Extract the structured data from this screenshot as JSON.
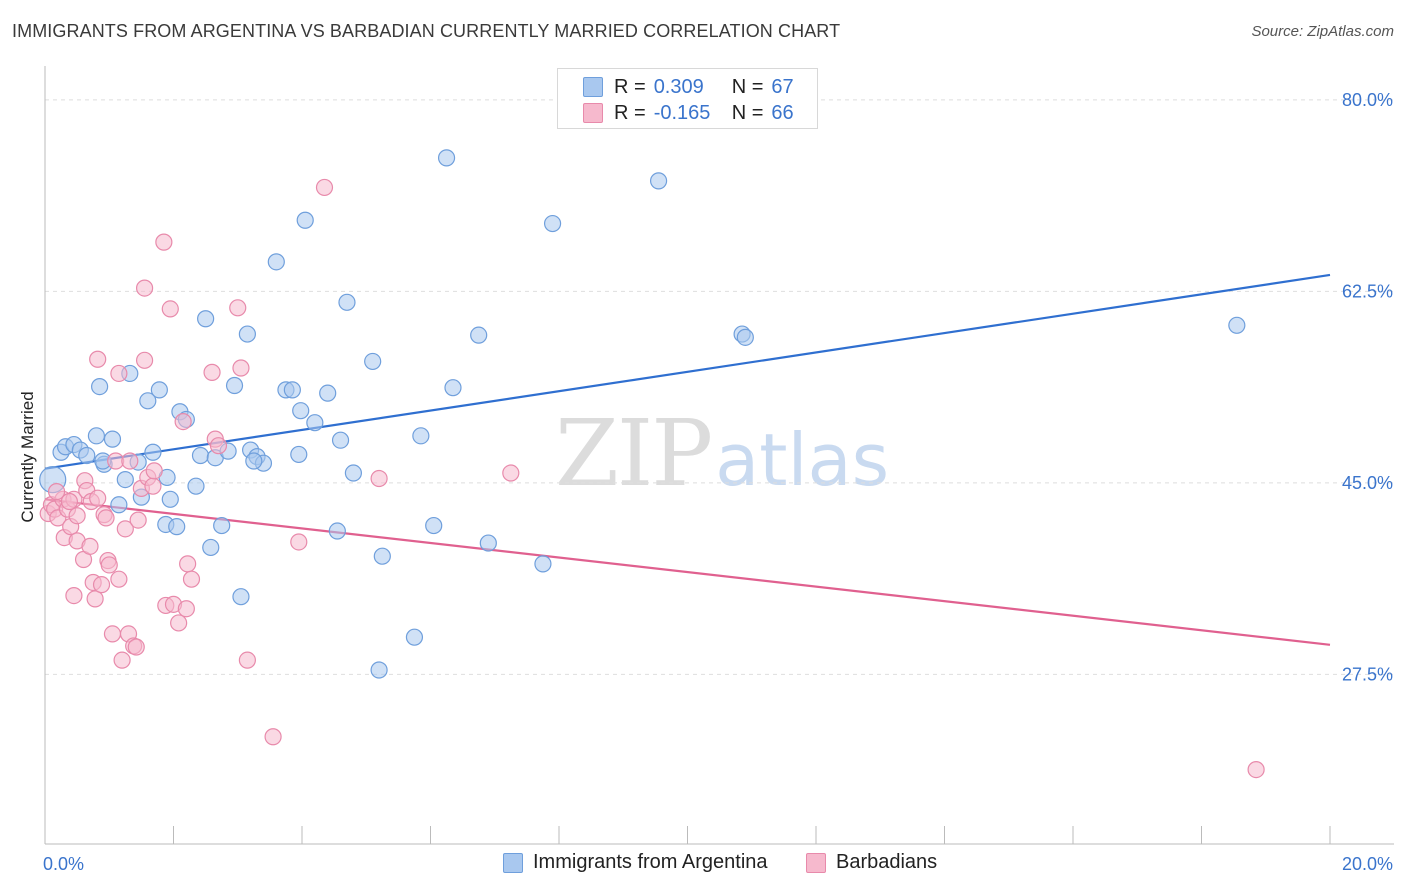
{
  "header": {
    "title": "IMMIGRANTS FROM ARGENTINA VS BARBADIAN CURRENTLY MARRIED CORRELATION CHART",
    "source": "Source: ZipAtlas.com"
  },
  "watermark": {
    "zip": "ZIP",
    "atlas": "atlas"
  },
  "legend": {
    "r_label": "R =",
    "n_label": "N =",
    "rows": [
      {
        "r_value": "0.309",
        "n_value": "67"
      },
      {
        "r_value": "-0.165",
        "n_value": "66"
      }
    ]
  },
  "chart_data": {
    "type": "scatter",
    "title": "IMMIGRANTS FROM ARGENTINA VS BARBADIAN CURRENTLY MARRIED CORRELATION CHART",
    "ylabel": "Currently Married",
    "xlabel": "",
    "xlim": [
      0,
      20
    ],
    "ylim": [
      12,
      82
    ],
    "x_tick_labels": [
      "0.0%",
      "20.0%"
    ],
    "y_ticks": [
      27.5,
      45.0,
      62.5,
      80.0
    ],
    "y_tick_labels": [
      "27.5%",
      "45.0%",
      "62.5%",
      "80.0%"
    ],
    "grid": true,
    "legend_position": "top-center",
    "colors": {
      "argentina_fill": "#a9c8ef",
      "argentina_stroke": "#6f9fdc",
      "argentina_line": "#2f6fd0",
      "barbadian_fill": "#f6b9cd",
      "barbadian_stroke": "#e88aab",
      "barbadian_line": "#e0608f",
      "tick_label": "#3a74cc"
    },
    "series": [
      {
        "name": "Immigrants from Argentina",
        "r": 0.309,
        "n": 67,
        "trend": {
          "x": [
            0.0,
            20.0
          ],
          "y": [
            46.3,
            64.0
          ]
        },
        "points": [
          {
            "x": 0.12,
            "y": 45.3,
            "big": true
          },
          {
            "x": 0.25,
            "y": 47.8
          },
          {
            "x": 0.32,
            "y": 48.3
          },
          {
            "x": 0.45,
            "y": 48.5
          },
          {
            "x": 0.55,
            "y": 48.0
          },
          {
            "x": 0.65,
            "y": 47.5
          },
          {
            "x": 0.8,
            "y": 49.3
          },
          {
            "x": 0.85,
            "y": 53.8
          },
          {
            "x": 0.92,
            "y": 46.7
          },
          {
            "x": 1.05,
            "y": 49.0
          },
          {
            "x": 1.15,
            "y": 43.0
          },
          {
            "x": 1.25,
            "y": 45.3
          },
          {
            "x": 1.32,
            "y": 55.0
          },
          {
            "x": 1.45,
            "y": 46.9
          },
          {
            "x": 1.5,
            "y": 43.7
          },
          {
            "x": 1.6,
            "y": 52.5
          },
          {
            "x": 1.68,
            "y": 47.8
          },
          {
            "x": 1.78,
            "y": 53.5
          },
          {
            "x": 1.88,
            "y": 41.2
          },
          {
            "x": 1.95,
            "y": 43.5
          },
          {
            "x": 2.05,
            "y": 41.0
          },
          {
            "x": 2.1,
            "y": 51.5
          },
          {
            "x": 2.2,
            "y": 50.8
          },
          {
            "x": 2.35,
            "y": 44.7
          },
          {
            "x": 2.42,
            "y": 47.5
          },
          {
            "x": 2.5,
            "y": 60.0
          },
          {
            "x": 2.58,
            "y": 39.1
          },
          {
            "x": 2.65,
            "y": 47.3
          },
          {
            "x": 2.75,
            "y": 41.1
          },
          {
            "x": 2.85,
            "y": 47.9
          },
          {
            "x": 2.95,
            "y": 53.9
          },
          {
            "x": 3.05,
            "y": 34.6
          },
          {
            "x": 3.15,
            "y": 58.6
          },
          {
            "x": 3.2,
            "y": 48.0
          },
          {
            "x": 3.3,
            "y": 47.4
          },
          {
            "x": 3.4,
            "y": 46.8
          },
          {
            "x": 3.6,
            "y": 65.2
          },
          {
            "x": 3.75,
            "y": 53.5
          },
          {
            "x": 3.85,
            "y": 53.5
          },
          {
            "x": 3.95,
            "y": 47.6
          },
          {
            "x": 3.98,
            "y": 51.6
          },
          {
            "x": 4.05,
            "y": 69.0
          },
          {
            "x": 4.2,
            "y": 50.5
          },
          {
            "x": 4.4,
            "y": 53.2
          },
          {
            "x": 4.55,
            "y": 40.6
          },
          {
            "x": 4.6,
            "y": 48.9
          },
          {
            "x": 4.7,
            "y": 61.5
          },
          {
            "x": 4.8,
            "y": 45.9
          },
          {
            "x": 5.1,
            "y": 56.1
          },
          {
            "x": 5.2,
            "y": 27.9
          },
          {
            "x": 5.25,
            "y": 38.3
          },
          {
            "x": 5.75,
            "y": 30.9
          },
          {
            "x": 5.85,
            "y": 49.3
          },
          {
            "x": 6.05,
            "y": 41.1
          },
          {
            "x": 6.25,
            "y": 74.7
          },
          {
            "x": 6.35,
            "y": 53.7
          },
          {
            "x": 6.75,
            "y": 58.5
          },
          {
            "x": 6.9,
            "y": 39.5
          },
          {
            "x": 7.75,
            "y": 37.6
          },
          {
            "x": 7.9,
            "y": 68.7
          },
          {
            "x": 9.55,
            "y": 72.6
          },
          {
            "x": 10.85,
            "y": 58.6
          },
          {
            "x": 10.9,
            "y": 58.3
          },
          {
            "x": 18.55,
            "y": 59.4
          },
          {
            "x": 0.9,
            "y": 47.0
          },
          {
            "x": 1.9,
            "y": 45.5
          },
          {
            "x": 3.25,
            "y": 47.0
          }
        ]
      },
      {
        "name": "Barbadians",
        "r": -0.165,
        "n": 66,
        "trend": {
          "x": [
            0.0,
            20.0
          ],
          "y": [
            43.5,
            30.2
          ]
        },
        "points": [
          {
            "x": 0.05,
            "y": 42.2
          },
          {
            "x": 0.1,
            "y": 43.0
          },
          {
            "x": 0.15,
            "y": 42.6
          },
          {
            "x": 0.2,
            "y": 41.8
          },
          {
            "x": 0.28,
            "y": 43.5
          },
          {
            "x": 0.3,
            "y": 40.0
          },
          {
            "x": 0.35,
            "y": 42.6
          },
          {
            "x": 0.4,
            "y": 41.0
          },
          {
            "x": 0.45,
            "y": 43.5
          },
          {
            "x": 0.45,
            "y": 34.7
          },
          {
            "x": 0.5,
            "y": 42.0
          },
          {
            "x": 0.5,
            "y": 39.7
          },
          {
            "x": 0.6,
            "y": 38.0
          },
          {
            "x": 0.62,
            "y": 45.2
          },
          {
            "x": 0.65,
            "y": 44.3
          },
          {
            "x": 0.7,
            "y": 39.2
          },
          {
            "x": 0.72,
            "y": 43.3
          },
          {
            "x": 0.75,
            "y": 35.9
          },
          {
            "x": 0.78,
            "y": 34.4
          },
          {
            "x": 0.82,
            "y": 43.6
          },
          {
            "x": 0.82,
            "y": 56.3
          },
          {
            "x": 0.88,
            "y": 35.7
          },
          {
            "x": 0.92,
            "y": 42.1
          },
          {
            "x": 0.95,
            "y": 41.8
          },
          {
            "x": 0.98,
            "y": 37.9
          },
          {
            "x": 1.0,
            "y": 37.5
          },
          {
            "x": 1.05,
            "y": 31.2
          },
          {
            "x": 1.1,
            "y": 47.0
          },
          {
            "x": 1.15,
            "y": 55.0
          },
          {
            "x": 1.15,
            "y": 36.2
          },
          {
            "x": 1.2,
            "y": 28.8
          },
          {
            "x": 1.25,
            "y": 40.8
          },
          {
            "x": 1.3,
            "y": 31.2
          },
          {
            "x": 1.32,
            "y": 47.0
          },
          {
            "x": 1.38,
            "y": 30.1
          },
          {
            "x": 1.42,
            "y": 30.0
          },
          {
            "x": 1.45,
            "y": 41.6
          },
          {
            "x": 1.5,
            "y": 44.5
          },
          {
            "x": 1.55,
            "y": 56.2
          },
          {
            "x": 1.55,
            "y": 62.8
          },
          {
            "x": 1.6,
            "y": 45.5
          },
          {
            "x": 1.68,
            "y": 44.7
          },
          {
            "x": 1.7,
            "y": 46.1
          },
          {
            "x": 1.85,
            "y": 67.0
          },
          {
            "x": 1.88,
            "y": 33.8
          },
          {
            "x": 1.95,
            "y": 60.9
          },
          {
            "x": 2.0,
            "y": 33.9
          },
          {
            "x": 2.08,
            "y": 32.2
          },
          {
            "x": 2.15,
            "y": 50.6
          },
          {
            "x": 2.2,
            "y": 33.5
          },
          {
            "x": 2.22,
            "y": 37.6
          },
          {
            "x": 2.28,
            "y": 36.2
          },
          {
            "x": 2.6,
            "y": 55.1
          },
          {
            "x": 2.65,
            "y": 49.0
          },
          {
            "x": 2.7,
            "y": 48.4
          },
          {
            "x": 3.0,
            "y": 61.0
          },
          {
            "x": 3.05,
            "y": 55.5
          },
          {
            "x": 3.15,
            "y": 28.8
          },
          {
            "x": 3.55,
            "y": 21.8
          },
          {
            "x": 3.95,
            "y": 39.6
          },
          {
            "x": 4.35,
            "y": 72.0
          },
          {
            "x": 5.2,
            "y": 45.4
          },
          {
            "x": 7.25,
            "y": 45.9
          },
          {
            "x": 18.85,
            "y": 18.8
          },
          {
            "x": 0.18,
            "y": 44.2
          },
          {
            "x": 0.38,
            "y": 43.3
          }
        ]
      }
    ]
  }
}
